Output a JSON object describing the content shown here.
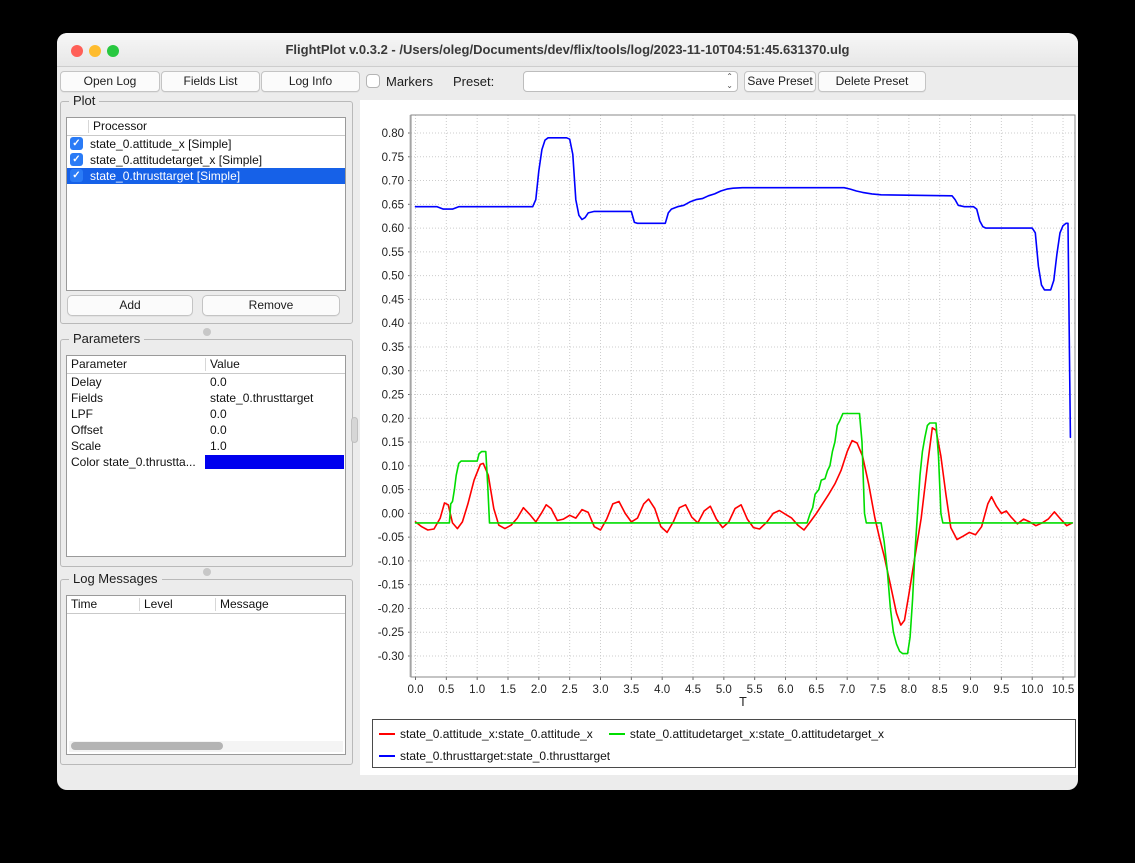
{
  "window": {
    "title": "FlightPlot v.0.3.2 - /Users/oleg/Documents/dev/flix/tools/log/2023-11-10T04:51:45.631370.ulg"
  },
  "toolbar": {
    "open_log": "Open Log",
    "fields_list": "Fields List",
    "log_info": "Log Info",
    "markers_label": "Markers",
    "markers_checked": false,
    "preset_label": "Preset:",
    "preset_value": "",
    "save_preset": "Save Preset",
    "delete_preset": "Delete Preset"
  },
  "plot_panel": {
    "title": "Plot",
    "column_header": "Processor",
    "items": [
      {
        "label": "state_0.attitude_x [Simple]",
        "checked": true,
        "selected": false
      },
      {
        "label": "state_0.attitudetarget_x [Simple]",
        "checked": true,
        "selected": false
      },
      {
        "label": "state_0.thrusttarget [Simple]",
        "checked": true,
        "selected": true
      }
    ],
    "add_label": "Add",
    "remove_label": "Remove"
  },
  "parameters_panel": {
    "title": "Parameters",
    "columns": [
      "Parameter",
      "Value"
    ],
    "rows": [
      {
        "parameter": "Delay",
        "value": "0.0"
      },
      {
        "parameter": "Fields",
        "value": "state_0.thrusttarget"
      },
      {
        "parameter": "LPF",
        "value": "0.0"
      },
      {
        "parameter": "Offset",
        "value": "0.0"
      },
      {
        "parameter": "Scale",
        "value": "1.0"
      },
      {
        "parameter": "Color state_0.thrustta...",
        "value": "",
        "swatch": "#0000ee"
      }
    ]
  },
  "log_panel": {
    "title": "Log Messages",
    "columns": [
      "Time",
      "Level",
      "Message"
    ],
    "rows": []
  },
  "colors": {
    "selection": "#1661e8",
    "checkbox_blue": "#2a7bf6",
    "traffic_red": "#ff5f57",
    "traffic_yellow": "#febc2e",
    "traffic_green": "#28c840",
    "grid": "#cccccc"
  },
  "chart_data": {
    "type": "line",
    "title": "",
    "xlabel": "T",
    "ylabel": "",
    "grid": true,
    "legend_position": "bottom",
    "xlim": [
      -0.08,
      10.72
    ],
    "ylim": [
      -0.344,
      0.838
    ],
    "x_ticks": [
      0.0,
      0.5,
      1.0,
      1.5,
      2.0,
      2.5,
      3.0,
      3.5,
      4.0,
      4.5,
      5.0,
      5.5,
      6.0,
      6.5,
      7.0,
      7.5,
      8.0,
      8.5,
      9.0,
      9.5,
      10.0,
      10.5
    ],
    "y_ticks": [
      -0.3,
      -0.25,
      -0.2,
      -0.15,
      -0.1,
      -0.05,
      0.0,
      0.05,
      0.1,
      0.15,
      0.2,
      0.25,
      0.3,
      0.35,
      0.4,
      0.45,
      0.5,
      0.55,
      0.6,
      0.65,
      0.7,
      0.75,
      0.8
    ],
    "x_tick_decimals": 1,
    "y_tick_decimals": 2,
    "series": [
      {
        "name": "state_0.attitude_x:state_0.attitude_x",
        "color": "#ff0000",
        "points": [
          [
            0,
            -0.018
          ],
          [
            0.1,
            -0.028
          ],
          [
            0.2,
            -0.035
          ],
          [
            0.3,
            -0.033
          ],
          [
            0.4,
            -0.01
          ],
          [
            0.47,
            0.022
          ],
          [
            0.53,
            0.018
          ],
          [
            0.6,
            -0.02
          ],
          [
            0.68,
            -0.032
          ],
          [
            0.76,
            -0.018
          ],
          [
            0.85,
            0.02
          ],
          [
            0.95,
            0.07
          ],
          [
            1.05,
            0.103
          ],
          [
            1.1,
            0.105
          ],
          [
            1.18,
            0.08
          ],
          [
            1.27,
            0.01
          ],
          [
            1.35,
            -0.025
          ],
          [
            1.45,
            -0.032
          ],
          [
            1.55,
            -0.025
          ],
          [
            1.65,
            -0.01
          ],
          [
            1.75,
            0.012
          ],
          [
            1.85,
            -0.002
          ],
          [
            1.95,
            -0.018
          ],
          [
            2.05,
            0.002
          ],
          [
            2.12,
            0.018
          ],
          [
            2.2,
            0.01
          ],
          [
            2.3,
            -0.015
          ],
          [
            2.4,
            -0.012
          ],
          [
            2.5,
            -0.004
          ],
          [
            2.6,
            -0.01
          ],
          [
            2.7,
            0.008
          ],
          [
            2.8,
            0.002
          ],
          [
            2.9,
            -0.028
          ],
          [
            3.0,
            -0.035
          ],
          [
            3.1,
            -0.012
          ],
          [
            3.2,
            0.02
          ],
          [
            3.3,
            0.025
          ],
          [
            3.4,
            0.0
          ],
          [
            3.5,
            -0.018
          ],
          [
            3.6,
            -0.01
          ],
          [
            3.7,
            0.02
          ],
          [
            3.78,
            0.03
          ],
          [
            3.88,
            0.01
          ],
          [
            3.98,
            -0.028
          ],
          [
            4.08,
            -0.04
          ],
          [
            4.18,
            -0.018
          ],
          [
            4.28,
            0.012
          ],
          [
            4.38,
            0.018
          ],
          [
            4.48,
            -0.008
          ],
          [
            4.58,
            -0.02
          ],
          [
            4.68,
            0.005
          ],
          [
            4.78,
            0.015
          ],
          [
            4.88,
            -0.012
          ],
          [
            4.98,
            -0.03
          ],
          [
            5.08,
            -0.018
          ],
          [
            5.18,
            0.01
          ],
          [
            5.28,
            0.018
          ],
          [
            5.38,
            -0.012
          ],
          [
            5.48,
            -0.03
          ],
          [
            5.58,
            -0.033
          ],
          [
            5.7,
            -0.018
          ],
          [
            5.8,
            0.0
          ],
          [
            5.9,
            0.006
          ],
          [
            6.0,
            -0.002
          ],
          [
            6.1,
            -0.01
          ],
          [
            6.2,
            -0.025
          ],
          [
            6.3,
            -0.035
          ],
          [
            6.4,
            -0.018
          ],
          [
            6.5,
            0.0
          ],
          [
            6.6,
            0.02
          ],
          [
            6.7,
            0.04
          ],
          [
            6.8,
            0.062
          ],
          [
            6.9,
            0.09
          ],
          [
            7.0,
            0.13
          ],
          [
            7.08,
            0.153
          ],
          [
            7.16,
            0.148
          ],
          [
            7.25,
            0.12
          ],
          [
            7.35,
            0.06
          ],
          [
            7.45,
            -0.01
          ],
          [
            7.52,
            -0.05
          ],
          [
            7.6,
            -0.09
          ],
          [
            7.7,
            -0.15
          ],
          [
            7.8,
            -0.21
          ],
          [
            7.87,
            -0.235
          ],
          [
            7.93,
            -0.225
          ],
          [
            8.0,
            -0.17
          ],
          [
            8.1,
            -0.09
          ],
          [
            8.2,
            -0.01
          ],
          [
            8.3,
            0.1
          ],
          [
            8.38,
            0.18
          ],
          [
            8.44,
            0.175
          ],
          [
            8.52,
            0.12
          ],
          [
            8.6,
            0.04
          ],
          [
            8.68,
            -0.03
          ],
          [
            8.78,
            -0.055
          ],
          [
            8.88,
            -0.048
          ],
          [
            8.98,
            -0.04
          ],
          [
            9.08,
            -0.045
          ],
          [
            9.18,
            -0.028
          ],
          [
            9.28,
            0.02
          ],
          [
            9.34,
            0.035
          ],
          [
            9.42,
            0.015
          ],
          [
            9.5,
            0.0
          ],
          [
            9.58,
            0.005
          ],
          [
            9.66,
            -0.008
          ],
          [
            9.76,
            -0.022
          ],
          [
            9.86,
            -0.012
          ],
          [
            9.96,
            -0.018
          ],
          [
            10.06,
            -0.026
          ],
          [
            10.16,
            -0.02
          ],
          [
            10.26,
            -0.012
          ],
          [
            10.36,
            0.003
          ],
          [
            10.46,
            -0.012
          ],
          [
            10.56,
            -0.026
          ],
          [
            10.65,
            -0.02
          ]
        ]
      },
      {
        "name": "state_0.attitudetarget_x:state_0.attitudetarget_x",
        "color": "#00dd00",
        "points": [
          [
            0,
            -0.02
          ],
          [
            0.55,
            -0.02
          ],
          [
            0.57,
            0.02
          ],
          [
            0.6,
            0.025
          ],
          [
            0.63,
            0.05
          ],
          [
            0.66,
            0.08
          ],
          [
            0.7,
            0.105
          ],
          [
            0.74,
            0.11
          ],
          [
            1.0,
            0.11
          ],
          [
            1.03,
            0.125
          ],
          [
            1.07,
            0.13
          ],
          [
            1.14,
            0.13
          ],
          [
            1.17,
            0.06
          ],
          [
            1.2,
            -0.02
          ],
          [
            6.35,
            -0.02
          ],
          [
            6.4,
            0.0
          ],
          [
            6.44,
            0.012
          ],
          [
            6.48,
            0.04
          ],
          [
            6.54,
            0.05
          ],
          [
            6.58,
            0.07
          ],
          [
            6.64,
            0.073
          ],
          [
            6.68,
            0.09
          ],
          [
            6.72,
            0.1
          ],
          [
            6.76,
            0.13
          ],
          [
            6.8,
            0.15
          ],
          [
            6.84,
            0.185
          ],
          [
            6.88,
            0.195
          ],
          [
            6.93,
            0.21
          ],
          [
            7.2,
            0.21
          ],
          [
            7.24,
            0.15
          ],
          [
            7.28,
            0.0
          ],
          [
            7.31,
            -0.02
          ],
          [
            7.55,
            -0.02
          ],
          [
            7.6,
            -0.06
          ],
          [
            7.65,
            -0.12
          ],
          [
            7.7,
            -0.2
          ],
          [
            7.75,
            -0.25
          ],
          [
            7.8,
            -0.275
          ],
          [
            7.85,
            -0.29
          ],
          [
            7.9,
            -0.295
          ],
          [
            7.98,
            -0.295
          ],
          [
            8.02,
            -0.26
          ],
          [
            8.06,
            -0.18
          ],
          [
            8.1,
            -0.08
          ],
          [
            8.14,
            0.0
          ],
          [
            8.18,
            0.08
          ],
          [
            8.22,
            0.13
          ],
          [
            8.26,
            0.16
          ],
          [
            8.3,
            0.185
          ],
          [
            8.34,
            0.19
          ],
          [
            8.44,
            0.19
          ],
          [
            8.48,
            0.12
          ],
          [
            8.52,
            0.0
          ],
          [
            8.55,
            -0.02
          ],
          [
            10.65,
            -0.02
          ]
        ]
      },
      {
        "name": "state_0.thrusttarget:state_0.thrusttarget",
        "color": "#0000ff",
        "points": [
          [
            0,
            0.645
          ],
          [
            0.35,
            0.645
          ],
          [
            0.45,
            0.64
          ],
          [
            0.6,
            0.64
          ],
          [
            0.7,
            0.645
          ],
          [
            1.9,
            0.645
          ],
          [
            1.95,
            0.66
          ],
          [
            2.0,
            0.72
          ],
          [
            2.05,
            0.765
          ],
          [
            2.1,
            0.785
          ],
          [
            2.15,
            0.79
          ],
          [
            2.45,
            0.79
          ],
          [
            2.5,
            0.787
          ],
          [
            2.55,
            0.755
          ],
          [
            2.6,
            0.66
          ],
          [
            2.65,
            0.627
          ],
          [
            2.7,
            0.618
          ],
          [
            2.75,
            0.622
          ],
          [
            2.8,
            0.632
          ],
          [
            2.9,
            0.635
          ],
          [
            3.5,
            0.635
          ],
          [
            3.55,
            0.612
          ],
          [
            3.6,
            0.61
          ],
          [
            4.05,
            0.61
          ],
          [
            4.1,
            0.632
          ],
          [
            4.15,
            0.64
          ],
          [
            4.25,
            0.645
          ],
          [
            4.35,
            0.648
          ],
          [
            4.45,
            0.655
          ],
          [
            4.55,
            0.66
          ],
          [
            4.65,
            0.662
          ],
          [
            4.75,
            0.668
          ],
          [
            4.85,
            0.672
          ],
          [
            4.95,
            0.678
          ],
          [
            5.05,
            0.682
          ],
          [
            5.15,
            0.684
          ],
          [
            5.3,
            0.685
          ],
          [
            6.95,
            0.685
          ],
          [
            7.05,
            0.682
          ],
          [
            7.15,
            0.678
          ],
          [
            7.25,
            0.675
          ],
          [
            7.4,
            0.672
          ],
          [
            7.55,
            0.67
          ],
          [
            8.7,
            0.668
          ],
          [
            8.75,
            0.66
          ],
          [
            8.8,
            0.648
          ],
          [
            8.9,
            0.645
          ],
          [
            9.05,
            0.645
          ],
          [
            9.1,
            0.64
          ],
          [
            9.15,
            0.615
          ],
          [
            9.2,
            0.603
          ],
          [
            9.25,
            0.6
          ],
          [
            10.0,
            0.6
          ],
          [
            10.05,
            0.59
          ],
          [
            10.1,
            0.52
          ],
          [
            10.15,
            0.48
          ],
          [
            10.2,
            0.47
          ],
          [
            10.3,
            0.47
          ],
          [
            10.35,
            0.49
          ],
          [
            10.4,
            0.545
          ],
          [
            10.45,
            0.59
          ],
          [
            10.5,
            0.605
          ],
          [
            10.55,
            0.61
          ],
          [
            10.58,
            0.61
          ],
          [
            10.62,
            0.16
          ]
        ]
      }
    ]
  }
}
